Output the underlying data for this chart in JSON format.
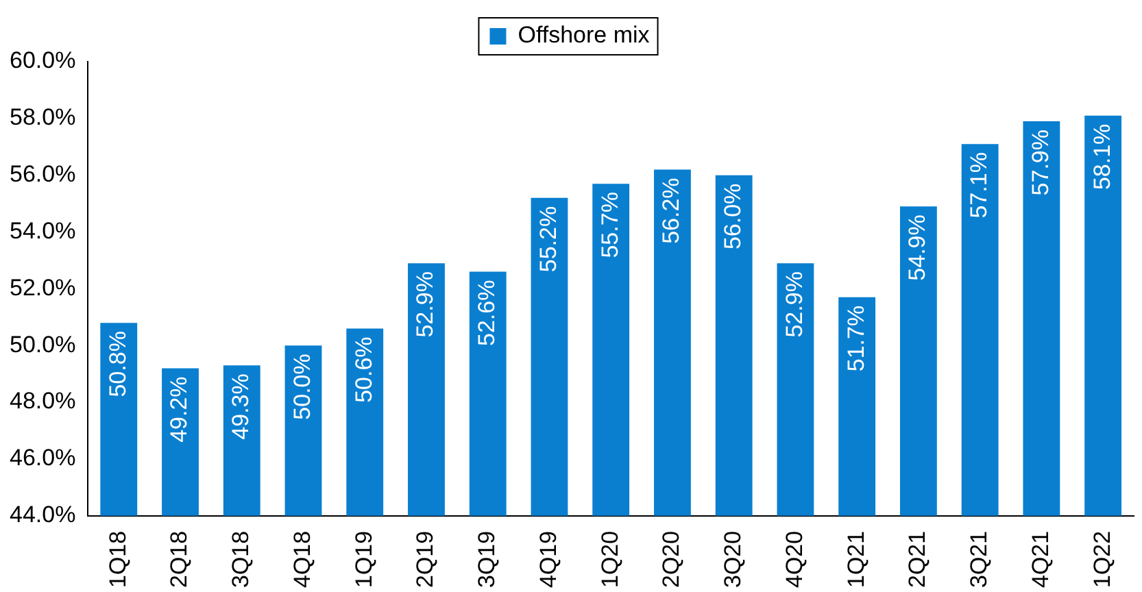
{
  "chart_data": {
    "type": "bar",
    "categories": [
      "1Q18",
      "2Q18",
      "3Q18",
      "4Q18",
      "1Q19",
      "2Q19",
      "3Q19",
      "4Q19",
      "1Q20",
      "2Q20",
      "3Q20",
      "4Q20",
      "1Q21",
      "2Q21",
      "3Q21",
      "4Q21",
      "1Q22"
    ],
    "series": [
      {
        "name": "Offshore mix",
        "color": "#0a7fd0",
        "values": [
          50.8,
          49.2,
          49.3,
          50.0,
          50.6,
          52.9,
          52.6,
          55.2,
          55.7,
          56.2,
          56.0,
          52.9,
          51.7,
          54.9,
          57.1,
          57.9,
          58.1
        ],
        "value_labels": [
          "50.8%",
          "49.2%",
          "49.3%",
          "50.0%",
          "50.6%",
          "52.9%",
          "52.6%",
          "55.2%",
          "55.7%",
          "56.2%",
          "56.0%",
          "52.9%",
          "51.7%",
          "54.9%",
          "57.1%",
          "57.9%",
          "58.1%"
        ]
      }
    ],
    "ylim": [
      44,
      60
    ],
    "yticks": [
      {
        "value": 44,
        "label": "44.0%"
      },
      {
        "value": 46,
        "label": "46.0%"
      },
      {
        "value": 48,
        "label": "48.0%"
      },
      {
        "value": 50,
        "label": "50.0%"
      },
      {
        "value": 52,
        "label": "52.0%"
      },
      {
        "value": 54,
        "label": "54.0%"
      },
      {
        "value": 56,
        "label": "56.0%"
      },
      {
        "value": 58,
        "label": "58.0%"
      },
      {
        "value": 60,
        "label": "60.0%"
      }
    ],
    "grid": false,
    "legend": "top"
  }
}
